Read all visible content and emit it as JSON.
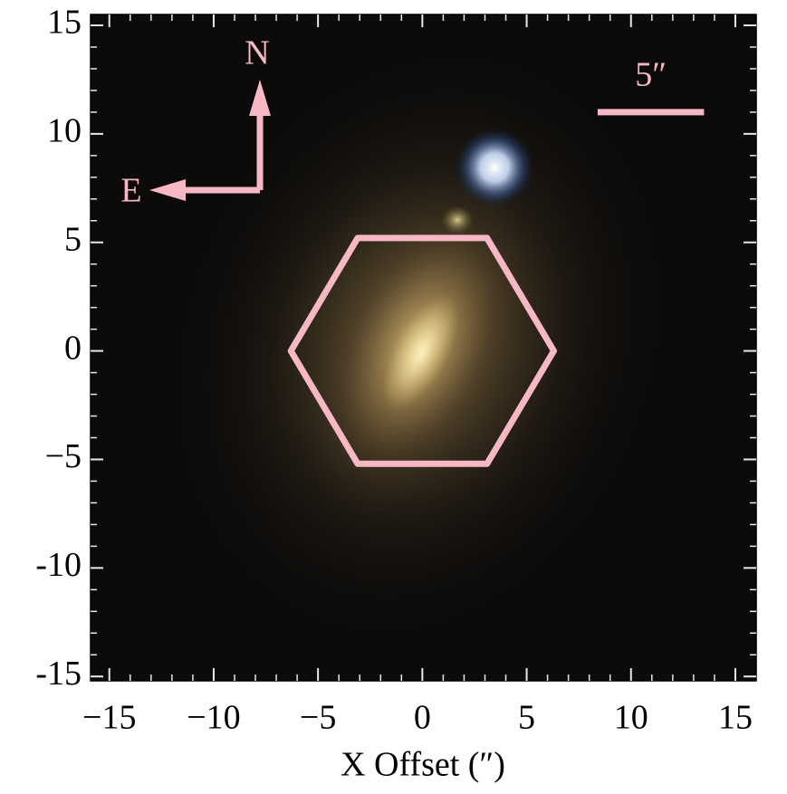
{
  "chart_data": {
    "type": "image",
    "xlabel": "X Offset (″)",
    "xlim": [
      -15.9,
      16
    ],
    "ylim": [
      -15.2,
      15.5
    ],
    "xticks": [
      {
        "value": -15,
        "label": "−15"
      },
      {
        "value": -10,
        "label": "−10"
      },
      {
        "value": -5,
        "label": "−5"
      },
      0,
      5,
      10,
      15
    ],
    "yticks": [
      -15,
      -10,
      {
        "value": -5,
        "label": "−5"
      },
      0,
      5,
      10,
      15
    ],
    "minor_ticks": [
      -15,
      -14,
      -13,
      -12,
      -11,
      -10,
      -9,
      -8,
      -7,
      -6,
      -5,
      -4,
      -3,
      -2,
      -1,
      0,
      1,
      2,
      3,
      4,
      5,
      6,
      7,
      8,
      9,
      10,
      11,
      12,
      13,
      14,
      15
    ],
    "hexagon": {
      "x": [
        -6.3,
        -3.1,
        3.1,
        6.3,
        3.1,
        -3.1
      ],
      "y": [
        0,
        5.2,
        5.2,
        0,
        -5.2,
        -5.2
      ],
      "color": "#f7b8c6"
    },
    "scale_bar": {
      "label": "5″",
      "x": [
        8.4,
        13.5
      ],
      "y": 11
    },
    "compass": {
      "north": "N",
      "east": "E"
    }
  }
}
